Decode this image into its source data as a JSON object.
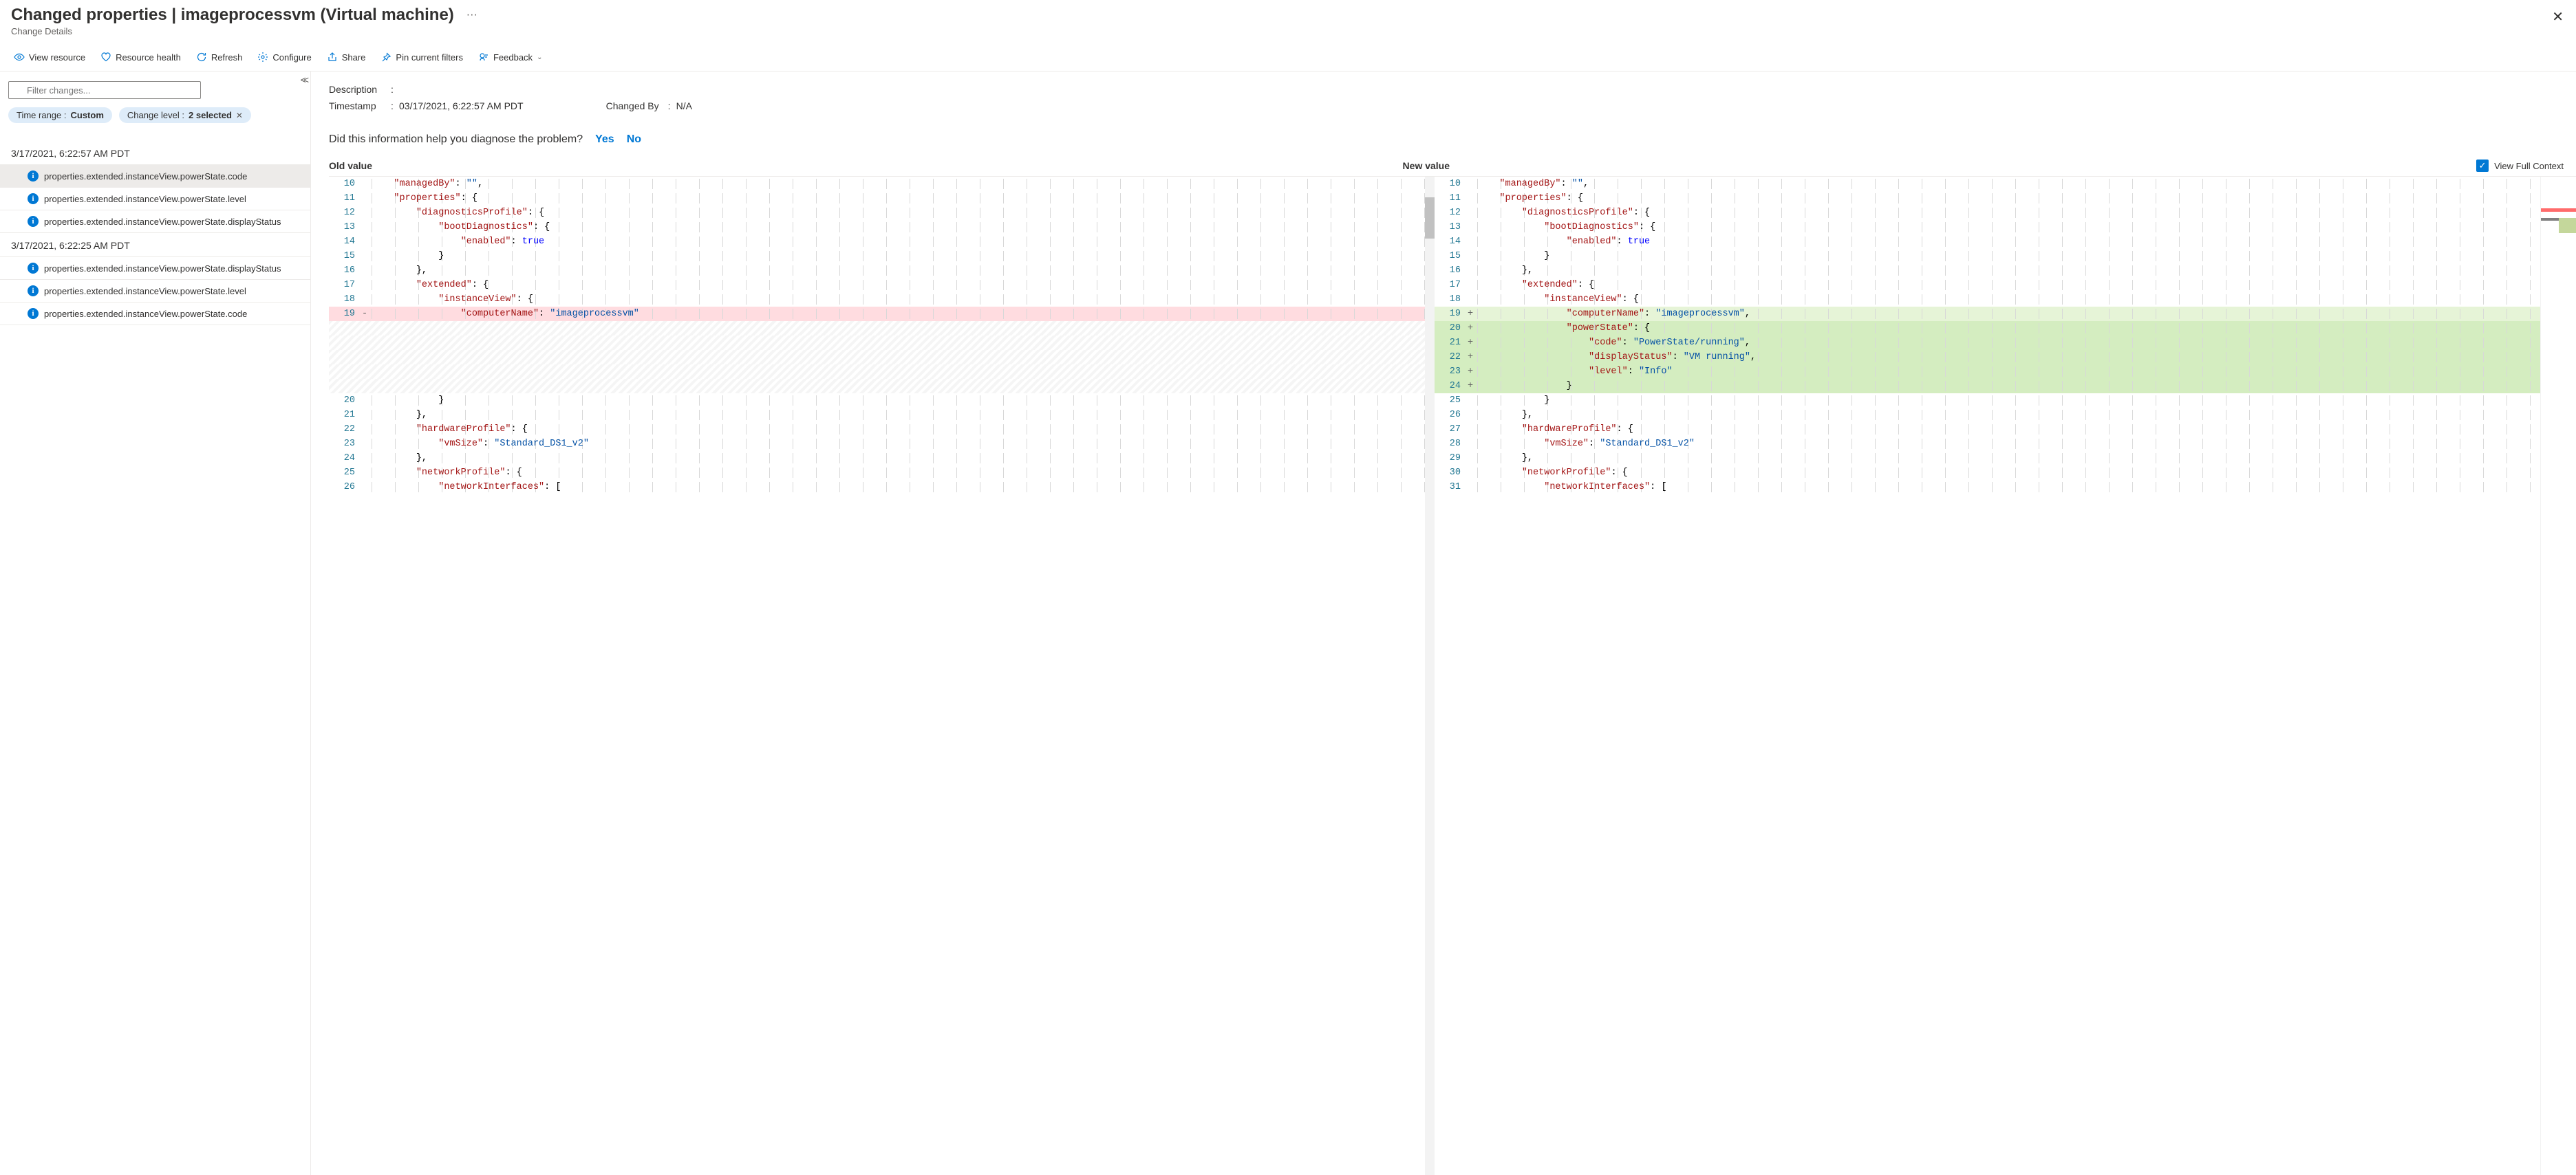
{
  "header": {
    "title": "Changed properties | imageprocessvm (Virtual machine)",
    "subtitle": "Change Details"
  },
  "toolbar": {
    "view_resource": "View resource",
    "resource_health": "Resource health",
    "refresh": "Refresh",
    "configure": "Configure",
    "share": "Share",
    "pin": "Pin current filters",
    "feedback": "Feedback"
  },
  "filter": {
    "placeholder": "Filter changes...",
    "time_range_label": "Time range :",
    "time_range_value": "Custom",
    "change_level_label": "Change level :",
    "change_level_value": "2 selected"
  },
  "groups": [
    {
      "timestamp": "3/17/2021, 6:22:57 AM PDT",
      "items": [
        {
          "path": "properties.extended.instanceView.powerState.code",
          "selected": true
        },
        {
          "path": "properties.extended.instanceView.powerState.level",
          "selected": false
        },
        {
          "path": "properties.extended.instanceView.powerState.displayStatus",
          "selected": false
        }
      ]
    },
    {
      "timestamp": "3/17/2021, 6:22:25 AM PDT",
      "items": [
        {
          "path": "properties.extended.instanceView.powerState.displayStatus",
          "selected": false
        },
        {
          "path": "properties.extended.instanceView.powerState.level",
          "selected": false
        },
        {
          "path": "properties.extended.instanceView.powerState.code",
          "selected": false
        }
      ]
    }
  ],
  "meta": {
    "description_label": "Description",
    "description_value": "",
    "timestamp_label": "Timestamp",
    "timestamp_value": "03/17/2021, 6:22:57 AM PDT",
    "changedby_label": "Changed By",
    "changedby_value": "N/A"
  },
  "question": {
    "text": "Did this information help you diagnose the problem?",
    "yes": "Yes",
    "no": "No"
  },
  "diff": {
    "old_label": "Old value",
    "new_label": "New value",
    "view_full_context": "View Full Context"
  },
  "colors": {
    "key": "#a31515",
    "string": "#0451a5",
    "bool": "#0000ff",
    "line_number": "#237893",
    "del_bg": "#ffdce0",
    "add_bg": "#e6f4d7",
    "add_bg_dark": "#d4edc0",
    "accent": "#0078d4"
  },
  "old_lines": [
    {
      "n": 10,
      "indent": 1,
      "tokens": [
        [
          "k",
          "\"managedBy\""
        ],
        [
          "p",
          ": "
        ],
        [
          "s",
          "\"\""
        ],
        [
          "p",
          ","
        ]
      ]
    },
    {
      "n": 11,
      "indent": 1,
      "tokens": [
        [
          "k",
          "\"properties\""
        ],
        [
          "p",
          ": {"
        ]
      ]
    },
    {
      "n": 12,
      "indent": 2,
      "tokens": [
        [
          "k",
          "\"diagnosticsProfile\""
        ],
        [
          "p",
          ": {"
        ]
      ]
    },
    {
      "n": 13,
      "indent": 3,
      "tokens": [
        [
          "k",
          "\"bootDiagnostics\""
        ],
        [
          "p",
          ": {"
        ]
      ]
    },
    {
      "n": 14,
      "indent": 4,
      "tokens": [
        [
          "k",
          "\"enabled\""
        ],
        [
          "p",
          ": "
        ],
        [
          "b",
          "true"
        ]
      ]
    },
    {
      "n": 15,
      "indent": 3,
      "tokens": [
        [
          "p",
          "}"
        ]
      ]
    },
    {
      "n": 16,
      "indent": 2,
      "tokens": [
        [
          "p",
          "},"
        ]
      ]
    },
    {
      "n": 17,
      "indent": 2,
      "tokens": [
        [
          "k",
          "\"extended\""
        ],
        [
          "p",
          ": {"
        ]
      ]
    },
    {
      "n": 18,
      "indent": 3,
      "tokens": [
        [
          "k",
          "\"instanceView\""
        ],
        [
          "p",
          ": {"
        ]
      ]
    },
    {
      "n": 19,
      "indent": 4,
      "cls": "line-del",
      "marker": "-",
      "tokens": [
        [
          "k",
          "\"computerName\""
        ],
        [
          "p",
          ": "
        ],
        [
          "s",
          "\"imageprocessvm\""
        ]
      ]
    },
    {
      "hatch": true
    },
    {
      "hatch": true
    },
    {
      "hatch": true
    },
    {
      "hatch": true
    },
    {
      "hatch": true
    },
    {
      "n": 20,
      "indent": 3,
      "tokens": [
        [
          "p",
          "}"
        ]
      ]
    },
    {
      "n": 21,
      "indent": 2,
      "tokens": [
        [
          "p",
          "},"
        ]
      ]
    },
    {
      "n": 22,
      "indent": 2,
      "tokens": [
        [
          "k",
          "\"hardwareProfile\""
        ],
        [
          "p",
          ": {"
        ]
      ]
    },
    {
      "n": 23,
      "indent": 3,
      "tokens": [
        [
          "k",
          "\"vmSize\""
        ],
        [
          "p",
          ": "
        ],
        [
          "s",
          "\"Standard_DS1_v2\""
        ]
      ]
    },
    {
      "n": 24,
      "indent": 2,
      "tokens": [
        [
          "p",
          "},"
        ]
      ]
    },
    {
      "n": 25,
      "indent": 2,
      "tokens": [
        [
          "k",
          "\"networkProfile\""
        ],
        [
          "p",
          ": {"
        ]
      ]
    },
    {
      "n": 26,
      "indent": 3,
      "tokens": [
        [
          "k",
          "\"networkInterfaces\""
        ],
        [
          "p",
          ": ["
        ]
      ]
    }
  ],
  "new_lines": [
    {
      "n": 10,
      "indent": 1,
      "tokens": [
        [
          "k",
          "\"managedBy\""
        ],
        [
          "p",
          ": "
        ],
        [
          "s",
          "\"\""
        ],
        [
          "p",
          ","
        ]
      ]
    },
    {
      "n": 11,
      "indent": 1,
      "tokens": [
        [
          "k",
          "\"properties\""
        ],
        [
          "p",
          ": {"
        ]
      ]
    },
    {
      "n": 12,
      "indent": 2,
      "tokens": [
        [
          "k",
          "\"diagnosticsProfile\""
        ],
        [
          "p",
          ": {"
        ]
      ]
    },
    {
      "n": 13,
      "indent": 3,
      "tokens": [
        [
          "k",
          "\"bootDiagnostics\""
        ],
        [
          "p",
          ": {"
        ]
      ]
    },
    {
      "n": 14,
      "indent": 4,
      "tokens": [
        [
          "k",
          "\"enabled\""
        ],
        [
          "p",
          ": "
        ],
        [
          "b",
          "true"
        ]
      ]
    },
    {
      "n": 15,
      "indent": 3,
      "tokens": [
        [
          "p",
          "}"
        ]
      ]
    },
    {
      "n": 16,
      "indent": 2,
      "tokens": [
        [
          "p",
          "},"
        ]
      ]
    },
    {
      "n": 17,
      "indent": 2,
      "tokens": [
        [
          "k",
          "\"extended\""
        ],
        [
          "p",
          ": {"
        ]
      ]
    },
    {
      "n": 18,
      "indent": 3,
      "tokens": [
        [
          "k",
          "\"instanceView\""
        ],
        [
          "p",
          ": {"
        ]
      ]
    },
    {
      "n": 19,
      "indent": 4,
      "cls": "line-add",
      "marker": "+",
      "tokens": [
        [
          "k",
          "\"computerName\""
        ],
        [
          "p",
          ": "
        ],
        [
          "s",
          "\"imageprocessvm\""
        ],
        [
          "p",
          ","
        ]
      ]
    },
    {
      "n": 20,
      "indent": 4,
      "cls": "line-add-dark",
      "marker": "+",
      "tokens": [
        [
          "k",
          "\"powerState\""
        ],
        [
          "p",
          ": {"
        ]
      ]
    },
    {
      "n": 21,
      "indent": 5,
      "cls": "line-add-dark",
      "marker": "+",
      "tokens": [
        [
          "k",
          "\"code\""
        ],
        [
          "p",
          ": "
        ],
        [
          "s",
          "\"PowerState/running\""
        ],
        [
          "p",
          ","
        ]
      ]
    },
    {
      "n": 22,
      "indent": 5,
      "cls": "line-add-dark",
      "marker": "+",
      "tokens": [
        [
          "k",
          "\"displayStatus\""
        ],
        [
          "p",
          ": "
        ],
        [
          "s",
          "\"VM running\""
        ],
        [
          "p",
          ","
        ]
      ]
    },
    {
      "n": 23,
      "indent": 5,
      "cls": "line-add-dark",
      "marker": "+",
      "tokens": [
        [
          "k",
          "\"level\""
        ],
        [
          "p",
          ": "
        ],
        [
          "s",
          "\"Info\""
        ]
      ]
    },
    {
      "n": 24,
      "indent": 4,
      "cls": "line-add-dark",
      "marker": "+",
      "tokens": [
        [
          "p",
          "}"
        ]
      ]
    },
    {
      "n": 25,
      "indent": 3,
      "tokens": [
        [
          "p",
          "}"
        ]
      ]
    },
    {
      "n": 26,
      "indent": 2,
      "tokens": [
        [
          "p",
          "},"
        ]
      ]
    },
    {
      "n": 27,
      "indent": 2,
      "tokens": [
        [
          "k",
          "\"hardwareProfile\""
        ],
        [
          "p",
          ": {"
        ]
      ]
    },
    {
      "n": 28,
      "indent": 3,
      "tokens": [
        [
          "k",
          "\"vmSize\""
        ],
        [
          "p",
          ": "
        ],
        [
          "s",
          "\"Standard_DS1_v2\""
        ]
      ]
    },
    {
      "n": 29,
      "indent": 2,
      "tokens": [
        [
          "p",
          "},"
        ]
      ]
    },
    {
      "n": 30,
      "indent": 2,
      "tokens": [
        [
          "k",
          "\"networkProfile\""
        ],
        [
          "p",
          ": {"
        ]
      ]
    },
    {
      "n": 31,
      "indent": 3,
      "tokens": [
        [
          "k",
          "\"networkInterfaces\""
        ],
        [
          "p",
          ": ["
        ]
      ]
    }
  ]
}
